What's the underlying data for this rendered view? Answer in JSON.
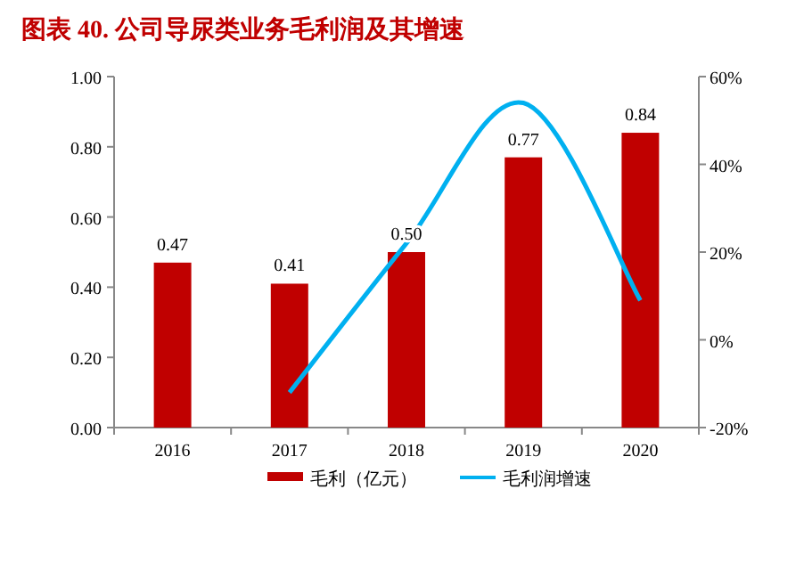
{
  "chart_data": {
    "type": "bar",
    "title": "图表 40. 公司导尿类业务毛利润及其增速",
    "categories": [
      "2016",
      "2017",
      "2018",
      "2019",
      "2020"
    ],
    "series": [
      {
        "name": "毛利（亿元）",
        "color": "#c00000",
        "values": [
          0.47,
          0.41,
          0.5,
          0.77,
          0.84
        ],
        "value_labels": [
          "0.47",
          "0.41",
          "0.50",
          "0.77",
          "0.84"
        ]
      },
      {
        "name": "毛利润增速",
        "type": "line",
        "axis": "y2",
        "color": "#00b0f0",
        "values": [
          null,
          -12,
          22,
          54,
          9
        ]
      }
    ],
    "ylim": [
      0,
      1
    ],
    "yticks": [
      {
        "value": 0,
        "label": "0.00"
      },
      {
        "value": 0.2,
        "label": "0.20"
      },
      {
        "value": 0.4,
        "label": "0.40"
      },
      {
        "value": 0.6,
        "label": "0.60"
      },
      {
        "value": 0.8,
        "label": "0.80"
      },
      {
        "value": 1,
        "label": "1.00"
      }
    ],
    "y2lim": [
      -20,
      60
    ],
    "y2ticks": [
      {
        "value": -20,
        "label": "-20%"
      },
      {
        "value": 0,
        "label": "0%"
      },
      {
        "value": 20,
        "label": "20%"
      },
      {
        "value": 40,
        "label": "40%"
      },
      {
        "value": 60,
        "label": "60%"
      }
    ],
    "legend": "bottom",
    "grid": false
  }
}
